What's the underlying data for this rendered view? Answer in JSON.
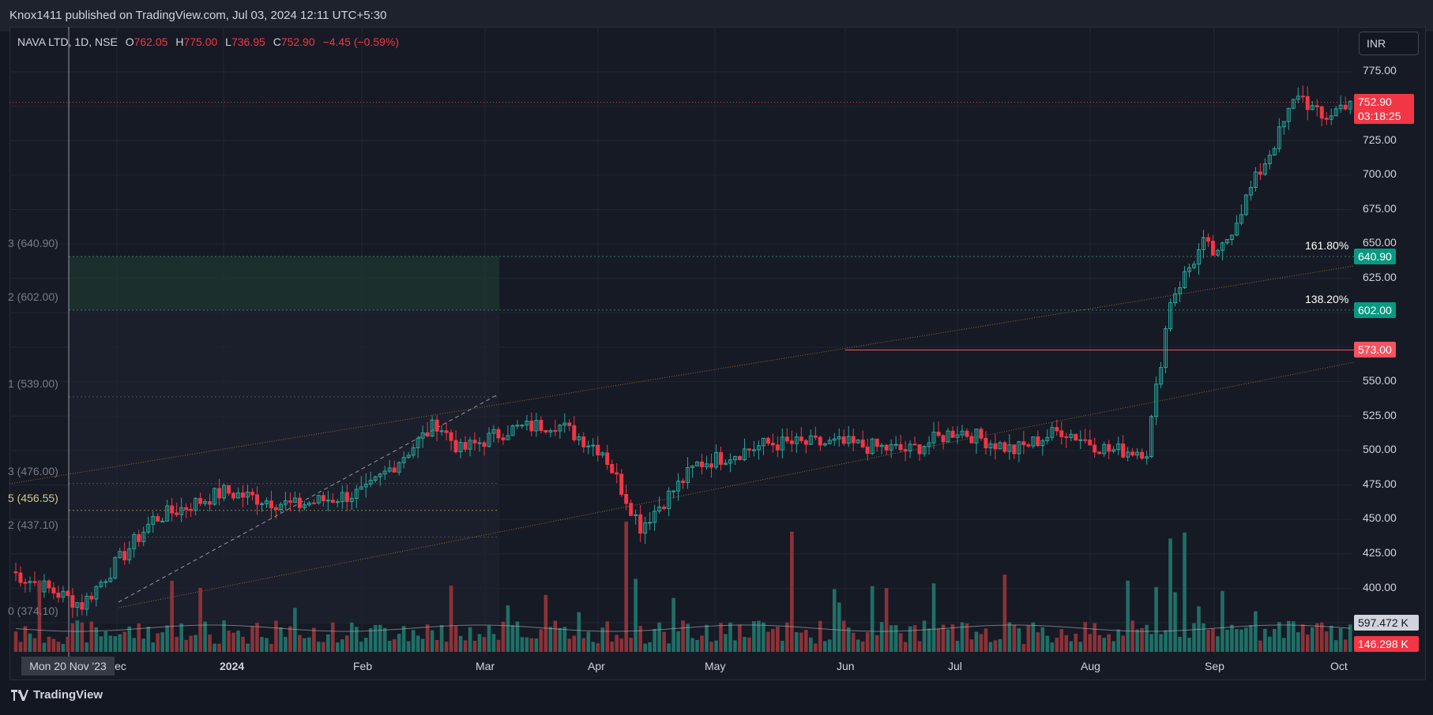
{
  "header": {
    "published_text": "Knox1411 published on TradingView.com, Jul 03, 2024 12:11 UTC+5:30"
  },
  "legend": {
    "symbol": "NAVA LTD, 1D, NSE",
    "o_label": "O",
    "o_value": "762.05",
    "h_label": "H",
    "h_value": "775.00",
    "l_label": "L",
    "l_value": "736.95",
    "c_label": "C",
    "c_value": "752.90",
    "change": "−4.45 (−0.59%)"
  },
  "currency_button": "INR",
  "price_axis": {
    "ticks": [
      "775.00",
      "725.00",
      "700.00",
      "675.00",
      "650.00",
      "625.00",
      "550.00",
      "525.00",
      "500.00",
      "475.00",
      "450.00",
      "425.00",
      "400.00"
    ]
  },
  "time_axis": {
    "ticks": [
      "Dec",
      "2024",
      "Feb",
      "Mar",
      "Apr",
      "May",
      "Jun",
      "Jul",
      "Aug",
      "Sep",
      "Oct"
    ],
    "crosshair_date": "Mon 20 Nov '23"
  },
  "price_tags": {
    "last_price": "752.90",
    "countdown": "03:18:25",
    "fib_1618_value": "640.90",
    "fib_1382_value": "602.00",
    "level_573": "573.00",
    "volume_ma": "597.472 K",
    "volume_last": "146.298 K"
  },
  "fib_labels": {
    "pct_1618": "161.80%",
    "pct_1382": "138.20%",
    "left_640": "3 (640.90)",
    "left_602": "2 (602.00)",
    "left_539": "1 (539.00)",
    "left_476": "3 (476.00)",
    "left_456": "5 (456.55)",
    "left_437": "2 (437.10)",
    "left_374": "0 (374.10)"
  },
  "colors": {
    "up": "#26a69a",
    "down": "#f23645",
    "background": "#161a25",
    "grid": "#222633"
  },
  "footer": {
    "brand": "TradingView"
  }
}
